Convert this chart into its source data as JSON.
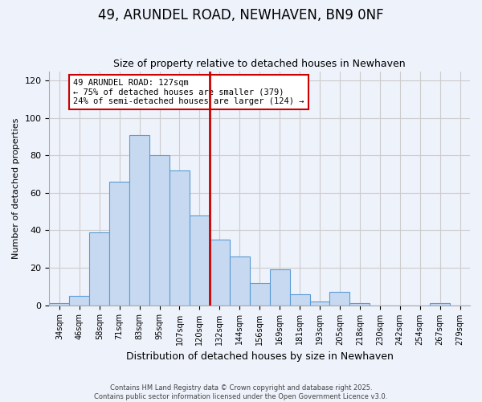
{
  "title": "49, ARUNDEL ROAD, NEWHAVEN, BN9 0NF",
  "subtitle": "Size of property relative to detached houses in Newhaven",
  "xlabel": "Distribution of detached houses by size in Newhaven",
  "ylabel": "Number of detached properties",
  "bin_labels": [
    "34sqm",
    "46sqm",
    "58sqm",
    "71sqm",
    "83sqm",
    "95sqm",
    "107sqm",
    "120sqm",
    "132sqm",
    "144sqm",
    "156sqm",
    "169sqm",
    "181sqm",
    "193sqm",
    "205sqm",
    "218sqm",
    "230sqm",
    "242sqm",
    "254sqm",
    "267sqm",
    "279sqm"
  ],
  "bar_heights": [
    1,
    5,
    39,
    66,
    91,
    80,
    72,
    48,
    35,
    26,
    12,
    19,
    6,
    2,
    7,
    1,
    0,
    0,
    0,
    1,
    0
  ],
  "bar_color": "#c6d9f0",
  "bar_edge_color": "#5b9bd5",
  "vline_x": 8.0,
  "vline_color": "#cc0000",
  "annotation_text": "49 ARUNDEL ROAD: 127sqm\n← 75% of detached houses are smaller (379)\n24% of semi-detached houses are larger (124) →",
  "annotation_box_color": "#ffffff",
  "annotation_box_edge": "#cc0000",
  "ylim": [
    0,
    125
  ],
  "yticks": [
    0,
    20,
    40,
    60,
    80,
    100,
    120
  ],
  "grid_color": "#cccccc",
  "background_color": "#eef2fb",
  "footer_line1": "Contains HM Land Registry data © Crown copyright and database right 2025.",
  "footer_line2": "Contains public sector information licensed under the Open Government Licence v3.0."
}
